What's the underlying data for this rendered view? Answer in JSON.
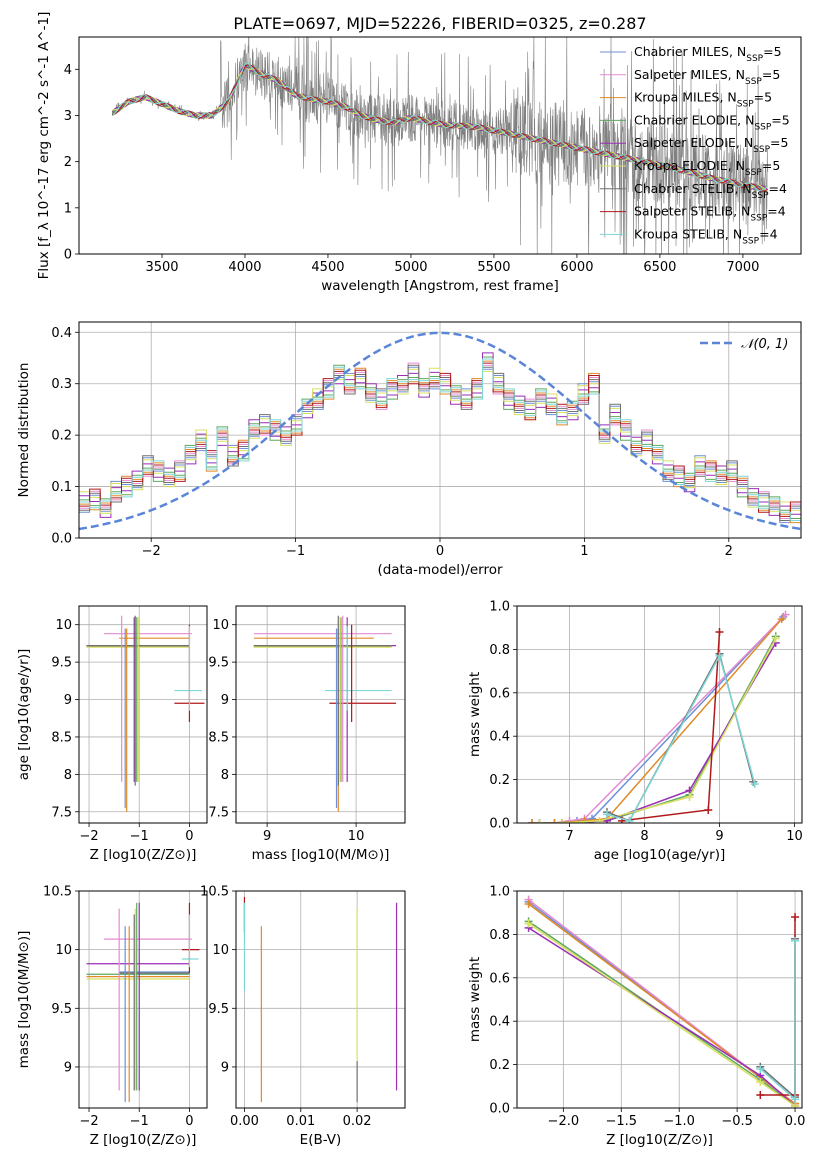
{
  "figure": {
    "title": "PLATE=0697, MJD=52226, FIBERID=0325, z=0.287"
  },
  "colors": {
    "Chabrier MILES": "#6f8fd6",
    "Salpeter MILES": "#e58ad0",
    "Kroupa MILES": "#e08a28",
    "Chabrier ELODIE": "#5fa85f",
    "Salpeter ELODIE": "#9a2fb5",
    "Kroupa ELODIE": "#d8e060",
    "Chabrier STELIB": "#707070",
    "Salpeter STELIB": "#b0191b",
    "Kroupa STELIB": "#7fd6d6",
    "data": "#808080",
    "normal": "#5b86d8"
  },
  "chart_data": [
    {
      "id": "spectrum",
      "type": "line",
      "xlabel": "wavelength [Angstrom, rest frame]",
      "ylabel": "Flux [f_λ 10^-17 erg cm^-2 s^-1 A^-1]",
      "xlim": [
        3000,
        7350
      ],
      "ylim": [
        0,
        4.7
      ],
      "xticks": [
        3500,
        4000,
        4500,
        5000,
        5500,
        6000,
        6500,
        7000
      ],
      "yticks": [
        0,
        1,
        2,
        3,
        4
      ],
      "legend_position": "top-right",
      "legend": [
        {
          "name": "Chabrier MILES",
          "nssp": "5"
        },
        {
          "name": "Salpeter MILES",
          "nssp": "5"
        },
        {
          "name": "Kroupa MILES",
          "nssp": "5"
        },
        {
          "name": "Chabrier ELODIE",
          "nssp": "5"
        },
        {
          "name": "Salpeter ELODIE",
          "nssp": "5"
        },
        {
          "name": "Kroupa ELODIE",
          "nssp": "5"
        },
        {
          "name": "Chabrier STELIB",
          "nssp": "4"
        },
        {
          "name": "Salpeter STELIB",
          "nssp": "4"
        },
        {
          "name": "Kroupa STELIB",
          "nssp": "4"
        }
      ],
      "model_continuum": {
        "x": [
          3200,
          3300,
          3400,
          3500,
          3600,
          3700,
          3800,
          3900,
          4000,
          4100,
          4200,
          4300,
          4400,
          4500,
          4600,
          4700,
          4800,
          4900,
          5000,
          5200,
          5400,
          5600,
          5800,
          6000,
          6200,
          6400,
          6600,
          6800,
          7000,
          7150
        ],
        "y": [
          3.05,
          3.3,
          3.4,
          3.25,
          3.1,
          3.0,
          3.0,
          3.3,
          4.1,
          3.9,
          3.75,
          3.45,
          3.35,
          3.3,
          3.2,
          3.0,
          2.9,
          2.85,
          2.95,
          2.8,
          2.75,
          2.6,
          2.45,
          2.3,
          2.15,
          2.0,
          1.85,
          1.65,
          1.5,
          1.4
        ]
      }
    },
    {
      "id": "residuals",
      "type": "line",
      "xlabel": "(data-model)/error",
      "ylabel": "Normed distribution",
      "xlim": [
        -2.5,
        2.5
      ],
      "ylim": [
        0,
        0.42
      ],
      "xticks": [
        -2,
        -1,
        0,
        1,
        2
      ],
      "yticks": [
        0.0,
        0.1,
        0.2,
        0.3,
        0.4
      ],
      "grid": true,
      "legend_position": "top-right",
      "normal_label": "𝒩(0, 1)",
      "normal_sigma": 1,
      "bin_width": 0.1,
      "bins_start": -2.5,
      "histogram": [
        0.07,
        0.075,
        0.06,
        0.09,
        0.1,
        0.11,
        0.14,
        0.13,
        0.12,
        0.13,
        0.16,
        0.19,
        0.15,
        0.2,
        0.16,
        0.17,
        0.21,
        0.22,
        0.21,
        0.2,
        0.22,
        0.25,
        0.27,
        0.29,
        0.32,
        0.3,
        0.31,
        0.28,
        0.27,
        0.29,
        0.3,
        0.32,
        0.29,
        0.31,
        0.3,
        0.28,
        0.27,
        0.29,
        0.34,
        0.3,
        0.27,
        0.26,
        0.25,
        0.27,
        0.26,
        0.24,
        0.25,
        0.28,
        0.3,
        0.2,
        0.24,
        0.21,
        0.18,
        0.19,
        0.16,
        0.13,
        0.12,
        0.11,
        0.14,
        0.13,
        0.12,
        0.13,
        0.1,
        0.08,
        0.07,
        0.06,
        0.05,
        0.05
      ]
    },
    {
      "id": "age_vs_Z",
      "type": "scatter",
      "xlabel": "Z [log10(Z/Z⊙)]",
      "ylabel": "age [log10(age/yr)]",
      "xlim": [
        -2.2,
        0.35
      ],
      "ylim": [
        7.35,
        10.25
      ],
      "xticks": [
        -2,
        -1,
        0
      ],
      "yticks": [
        7.5,
        8.0,
        8.5,
        9.0,
        9.5,
        10.0
      ],
      "grid": true,
      "horizontal_bars": [
        {
          "series": "Chabrier MILES",
          "y": 9.72,
          "x0": -2.05,
          "x1": 0.0
        },
        {
          "series": "Salpeter MILES",
          "y": 9.88,
          "x0": -1.7,
          "x1": 0.05
        },
        {
          "series": "Kroupa MILES",
          "y": 9.82,
          "x0": -1.4,
          "x1": 0.0
        },
        {
          "series": "Chabrier ELODIE",
          "y": 9.71,
          "x0": -2.05,
          "x1": 0.0
        },
        {
          "series": "Salpeter ELODIE",
          "y": 9.72,
          "x0": -2.05,
          "x1": 0.0
        },
        {
          "series": "Kroupa ELODIE",
          "y": 9.7,
          "x0": -2.05,
          "x1": 0.0
        },
        {
          "series": "Chabrier STELIB",
          "y": 9.72,
          "x0": -2.05,
          "x1": 0.0
        },
        {
          "series": "Salpeter STELIB",
          "y": 8.95,
          "x0": -0.3,
          "x1": 0.3
        },
        {
          "series": "Kroupa STELIB",
          "y": 9.12,
          "x0": -0.3,
          "x1": 0.25
        }
      ],
      "vertical_bars": [
        {
          "series": "Chabrier MILES",
          "x": -1.28,
          "y0": 7.55,
          "y1": 9.95
        },
        {
          "series": "Salpeter MILES",
          "x": -1.35,
          "y0": 7.9,
          "y1": 10.12
        },
        {
          "series": "Kroupa MILES",
          "x": -1.25,
          "y0": 7.5,
          "y1": 9.95
        },
        {
          "series": "Chabrier ELODIE",
          "x": -1.05,
          "y0": 7.9,
          "y1": 10.1
        },
        {
          "series": "Salpeter ELODIE",
          "x": -1.1,
          "y0": 7.9,
          "y1": 10.1
        },
        {
          "series": "Kroupa ELODIE",
          "x": -1.02,
          "y0": 7.9,
          "y1": 10.1
        },
        {
          "series": "Chabrier STELIB",
          "x": -1.08,
          "y0": 7.85,
          "y1": 10.12
        },
        {
          "series": "Salpeter STELIB",
          "x": 0.0,
          "y0": 8.7,
          "y1": 10.0
        },
        {
          "series": "Kroupa STELIB",
          "x": 0.0,
          "y0": 8.85,
          "y1": 9.98
        }
      ]
    },
    {
      "id": "age_vs_mass",
      "type": "scatter",
      "xlabel": "mass [log10(M/M⊙)]",
      "xlim": [
        8.65,
        10.55
      ],
      "ylim": [
        7.35,
        10.25
      ],
      "xticks": [
        9,
        10
      ],
      "yticks": [
        7.5,
        8.0,
        8.5,
        9.0,
        9.5,
        10.0
      ],
      "grid": true,
      "horizontal_bars": [
        {
          "series": "Chabrier MILES",
          "y": 9.72,
          "x0": 8.85,
          "x1": 10.4
        },
        {
          "series": "Salpeter MILES",
          "y": 9.88,
          "x0": 8.85,
          "x1": 10.4
        },
        {
          "series": "Kroupa MILES",
          "y": 9.82,
          "x0": 8.85,
          "x1": 10.2
        },
        {
          "series": "Chabrier ELODIE",
          "y": 9.71,
          "x0": 8.85,
          "x1": 10.4
        },
        {
          "series": "Salpeter ELODIE",
          "y": 9.72,
          "x0": 9.0,
          "x1": 10.45
        },
        {
          "series": "Kroupa ELODIE",
          "y": 9.7,
          "x0": 8.85,
          "x1": 10.4
        },
        {
          "series": "Chabrier STELIB",
          "y": 9.72,
          "x0": 8.85,
          "x1": 10.4
        },
        {
          "series": "Salpeter STELIB",
          "y": 8.95,
          "x0": 9.7,
          "x1": 10.45
        },
        {
          "series": "Kroupa STELIB",
          "y": 9.12,
          "x0": 9.65,
          "x1": 10.4
        }
      ],
      "vertical_bars": [
        {
          "series": "Chabrier MILES",
          "x": 9.78,
          "y0": 7.55,
          "y1": 9.95
        },
        {
          "series": "Salpeter MILES",
          "x": 9.85,
          "y0": 7.9,
          "y1": 10.12
        },
        {
          "series": "Kroupa MILES",
          "x": 9.8,
          "y0": 7.5,
          "y1": 9.95
        },
        {
          "series": "Chabrier ELODIE",
          "x": 9.83,
          "y0": 7.9,
          "y1": 10.1
        },
        {
          "series": "Salpeter ELODIE",
          "x": 9.9,
          "y0": 7.9,
          "y1": 10.1
        },
        {
          "series": "Kroupa ELODIE",
          "x": 9.82,
          "y0": 7.9,
          "y1": 10.1
        },
        {
          "series": "Chabrier STELIB",
          "x": 9.8,
          "y0": 7.85,
          "y1": 10.12
        },
        {
          "series": "Salpeter STELIB",
          "x": 9.95,
          "y0": 8.7,
          "y1": 10.0
        },
        {
          "series": "Kroupa STELIB",
          "x": 9.9,
          "y0": 8.85,
          "y1": 9.98
        }
      ]
    },
    {
      "id": "weight_vs_age",
      "type": "line",
      "xlabel": "age [log10(age/yr)]",
      "ylabel": "mass weight",
      "xlim": [
        6.3,
        10.1
      ],
      "ylim": [
        0,
        1.0
      ],
      "xticks": [
        7,
        8,
        9,
        10
      ],
      "yticks": [
        0.0,
        0.2,
        0.4,
        0.6,
        0.8,
        1.0
      ],
      "grid": true,
      "series": [
        {
          "name": "Chabrier MILES",
          "x": [
            6.5,
            6.8,
            7.1,
            7.3,
            9.85
          ],
          "y": [
            0.0,
            0.0,
            0.01,
            0.02,
            0.95
          ]
        },
        {
          "name": "Salpeter MILES",
          "x": [
            6.5,
            6.8,
            7.0,
            7.2,
            9.88
          ],
          "y": [
            0.0,
            0.0,
            0.01,
            0.02,
            0.96
          ]
        },
        {
          "name": "Kroupa MILES",
          "x": [
            6.5,
            6.8,
            7.2,
            7.5,
            9.83
          ],
          "y": [
            0.0,
            0.0,
            0.01,
            0.02,
            0.94
          ]
        },
        {
          "name": "Chabrier ELODIE",
          "x": [
            6.6,
            6.9,
            7.5,
            8.6,
            9.75
          ],
          "y": [
            0.0,
            0.0,
            0.01,
            0.13,
            0.86
          ]
        },
        {
          "name": "Salpeter ELODIE",
          "x": [
            6.6,
            6.9,
            7.5,
            8.6,
            9.75
          ],
          "y": [
            0.0,
            0.0,
            0.01,
            0.15,
            0.83
          ]
        },
        {
          "name": "Kroupa ELODIE",
          "x": [
            6.6,
            6.9,
            7.4,
            8.6,
            9.75
          ],
          "y": [
            0.0,
            0.0,
            0.01,
            0.12,
            0.85
          ]
        },
        {
          "name": "Chabrier STELIB",
          "x": [
            7.5,
            7.8,
            9.0,
            9.45
          ],
          "y": [
            0.05,
            0.01,
            0.78,
            0.19
          ]
        },
        {
          "name": "Salpeter STELIB",
          "x": [
            7.7,
            8.85,
            9.0
          ],
          "y": [
            0.01,
            0.06,
            0.88
          ]
        },
        {
          "name": "Kroupa STELIB",
          "x": [
            7.5,
            7.8,
            9.0,
            9.47
          ],
          "y": [
            0.04,
            0.01,
            0.77,
            0.18
          ]
        }
      ]
    },
    {
      "id": "mass_vs_Z",
      "type": "scatter",
      "xlabel": "Z [log10(Z/Z⊙)]",
      "ylabel": "mass [log10(M/M⊙)]",
      "xlim": [
        -2.2,
        0.35
      ],
      "ylim": [
        8.65,
        10.5
      ],
      "xticks": [
        -2,
        -1,
        0
      ],
      "yticks": [
        9.0,
        9.5,
        10.0,
        10.5
      ],
      "grid": true,
      "horizontal_bars": [
        {
          "series": "Chabrier MILES",
          "y": 9.81,
          "x0": -1.4,
          "x1": 0.0
        },
        {
          "series": "Salpeter MILES",
          "y": 10.09,
          "x0": -1.7,
          "x1": 0.05
        },
        {
          "series": "Kroupa MILES",
          "y": 9.77,
          "x0": -2.05,
          "x1": 0.0
        },
        {
          "series": "Chabrier ELODIE",
          "y": 9.79,
          "x0": -2.05,
          "x1": 0.0
        },
        {
          "series": "Salpeter ELODIE",
          "y": 9.88,
          "x0": -2.05,
          "x1": 0.0
        },
        {
          "series": "Kroupa ELODIE",
          "y": 9.75,
          "x0": -2.05,
          "x1": 0.0
        },
        {
          "series": "Chabrier STELIB",
          "y": 9.8,
          "x0": -1.4,
          "x1": 0.0
        },
        {
          "series": "Salpeter STELIB",
          "y": 10.0,
          "x0": -0.15,
          "x1": 0.2
        },
        {
          "series": "Kroupa STELIB",
          "y": 9.92,
          "x0": -0.15,
          "x1": 0.18
        }
      ],
      "vertical_bars": [
        {
          "series": "Chabrier MILES",
          "x": -1.28,
          "y0": 8.7,
          "y1": 10.2
        },
        {
          "series": "Salpeter MILES",
          "x": -1.4,
          "y0": 8.8,
          "y1": 10.35
        },
        {
          "series": "Kroupa MILES",
          "x": -1.2,
          "y0": 8.7,
          "y1": 10.2
        },
        {
          "series": "Chabrier ELODIE",
          "x": -1.05,
          "y0": 8.8,
          "y1": 10.4
        },
        {
          "series": "Salpeter ELODIE",
          "x": -1.0,
          "y0": 8.8,
          "y1": 10.4
        },
        {
          "series": "Kroupa ELODIE",
          "x": -1.08,
          "y0": 8.8,
          "y1": 10.35
        },
        {
          "series": "Chabrier STELIB",
          "x": -1.1,
          "y0": 8.8,
          "y1": 10.3
        },
        {
          "series": "Salpeter STELIB",
          "x": 0.0,
          "y0": 9.8,
          "y1": 10.4
        },
        {
          "series": "Kroupa STELIB",
          "x": 0.0,
          "y0": 9.85,
          "y1": 10.3
        }
      ]
    },
    {
      "id": "mass_vs_EBV",
      "type": "scatter",
      "xlabel": "E(B-V)",
      "xlim": [
        -0.0015,
        0.0285
      ],
      "ylim": [
        8.65,
        10.5
      ],
      "xticks": [
        0.0,
        0.01,
        0.02
      ],
      "xtick_labels": [
        "0.00",
        "0.01",
        "0.02"
      ],
      "yticks": [
        9.0,
        9.5,
        10.0,
        10.5
      ],
      "grid": true,
      "vertical_bars": [
        {
          "series": "Salpeter STELIB",
          "x": 0.0,
          "y0": 10.15,
          "y1": 10.45
        },
        {
          "series": "Kroupa STELIB",
          "x": 0.0,
          "y0": 9.65,
          "y1": 10.4
        },
        {
          "series": "Kroupa MILES",
          "x": 0.003,
          "y0": 8.7,
          "y1": 10.2
        },
        {
          "series": "Kroupa ELODIE",
          "x": 0.02,
          "y0": 9.05,
          "y1": 10.35
        },
        {
          "series": "Chabrier STELIB",
          "x": 0.02,
          "y0": 8.7,
          "y1": 9.05
        },
        {
          "series": "Salpeter ELODIE",
          "x": 0.027,
          "y0": 8.8,
          "y1": 10.4
        }
      ]
    },
    {
      "id": "weight_vs_Z",
      "type": "line",
      "xlabel": "Z [log10(Z/Z⊙)]",
      "ylabel": "mass weight",
      "xlim": [
        -2.4,
        0.06
      ],
      "ylim": [
        0,
        1.0
      ],
      "xticks": [
        -2.0,
        -1.5,
        -1.0,
        -0.5,
        0.0
      ],
      "xtick_labels": [
        "−2.0",
        "−1.5",
        "−1.0",
        "−0.5",
        "0.0"
      ],
      "yticks": [
        0.0,
        0.2,
        0.4,
        0.6,
        0.8,
        1.0
      ],
      "grid": true,
      "series": [
        {
          "name": "Chabrier MILES",
          "x": [
            -2.3,
            0.0
          ],
          "y": [
            0.95,
            0.02
          ]
        },
        {
          "name": "Salpeter MILES",
          "x": [
            -2.3,
            0.0
          ],
          "y": [
            0.96,
            0.02
          ]
        },
        {
          "name": "Kroupa MILES",
          "x": [
            -2.3,
            0.0
          ],
          "y": [
            0.94,
            0.02
          ]
        },
        {
          "name": "Chabrier ELODIE",
          "x": [
            -2.3,
            -0.3,
            0.0
          ],
          "y": [
            0.86,
            0.13,
            0.01
          ]
        },
        {
          "name": "Salpeter ELODIE",
          "x": [
            -2.3,
            -0.3,
            0.0
          ],
          "y": [
            0.83,
            0.15,
            0.01
          ]
        },
        {
          "name": "Kroupa ELODIE",
          "x": [
            -2.3,
            -0.3,
            0.0
          ],
          "y": [
            0.85,
            0.12,
            0.01
          ]
        },
        {
          "name": "Chabrier STELIB",
          "x": [
            -0.3,
            0.0,
            0.0
          ],
          "y": [
            0.19,
            0.05,
            0.78
          ]
        },
        {
          "name": "Salpeter STELIB",
          "x": [
            -0.3,
            0.0,
            0.0
          ],
          "y": [
            0.06,
            0.06,
            0.88
          ]
        },
        {
          "name": "Kroupa STELIB",
          "x": [
            -0.3,
            0.0,
            0.0
          ],
          "y": [
            0.18,
            0.04,
            0.77
          ]
        }
      ]
    }
  ]
}
